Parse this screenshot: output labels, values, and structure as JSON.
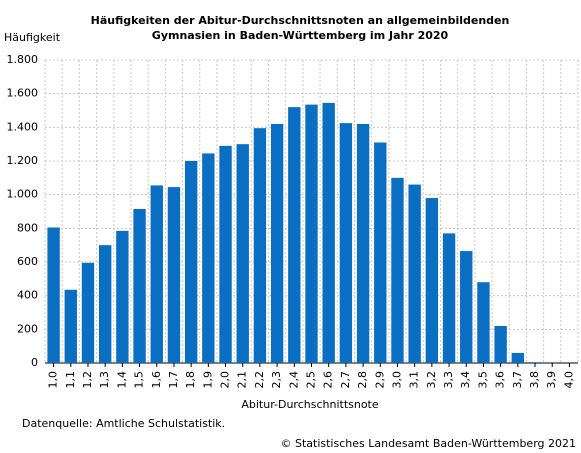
{
  "chart_data": {
    "type": "bar",
    "title": [
      "Häufigkeiten der Abitur-Durchschnittsnoten an allgemeinbildenden",
      "Gymnasien in Baden-Württemberg im Jahr 2020"
    ],
    "y_label": "Häufigkeit",
    "x_label": "Abitur-Durchschnittsnote",
    "source": "Datenquelle: Amtliche Schulstatistik.",
    "copyright": "© Statistisches Landesamt Baden-Württemberg 2021",
    "categories": [
      "1,0",
      "1,1",
      "1,2",
      "1,3",
      "1,4",
      "1,5",
      "1,6",
      "1,7",
      "1,8",
      "1,9",
      "2,0",
      "2,1",
      "2,2",
      "2,3",
      "2,4",
      "2,5",
      "2,6",
      "2,7",
      "2,8",
      "2,9",
      "3,0",
      "3,1",
      "3,2",
      "3,3",
      "3,4",
      "3,5",
      "3,6",
      "3,7",
      "3,8",
      "3,9",
      "4,0"
    ],
    "values": [
      805,
      435,
      595,
      700,
      785,
      915,
      1055,
      1045,
      1200,
      1245,
      1290,
      1300,
      1395,
      1420,
      1520,
      1535,
      1545,
      1425,
      1420,
      1310,
      1100,
      1060,
      980,
      770,
      665,
      480,
      220,
      60,
      5,
      0,
      0
    ],
    "color": "#0a6fc2",
    "ylim": [
      0,
      1800
    ],
    "yticks": [
      0,
      200,
      400,
      600,
      800,
      {
        "value": 1000,
        "label": "1.000"
      },
      {
        "value": 1200,
        "label": "1.200"
      },
      {
        "value": 1400,
        "label": "1.400"
      },
      {
        "value": 1600,
        "label": "1.600"
      },
      {
        "value": 1800,
        "label": "1.800"
      }
    ],
    "grid": true
  }
}
